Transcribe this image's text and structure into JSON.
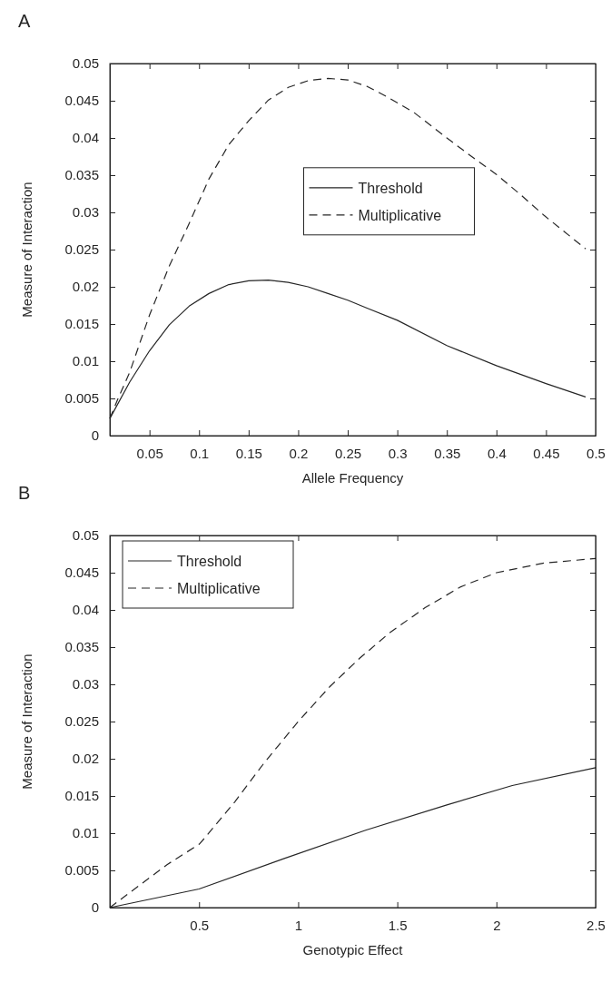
{
  "chart_data": [
    {
      "type": "line",
      "title": "A",
      "xlabel": "Allele Frequency",
      "ylabel": "Measure of Interaction",
      "xlim": [
        0.01,
        0.5
      ],
      "ylim": [
        0,
        0.05
      ],
      "xticks": [
        0.05,
        0.1,
        0.15,
        0.2,
        0.25,
        0.3,
        0.35,
        0.4,
        0.45,
        0.5
      ],
      "yticks": [
        0,
        0.005,
        0.01,
        0.015,
        0.02,
        0.025,
        0.03,
        0.035,
        0.04,
        0.045,
        0.05
      ],
      "legend": "center",
      "grid": false,
      "marker": "none",
      "series": [
        {
          "name": "Threshold",
          "color": "#262626",
          "line_style": "solid",
          "x": [
            0.01,
            0.03,
            0.05,
            0.07,
            0.09,
            0.11,
            0.13,
            0.15,
            0.17,
            0.19,
            0.21,
            0.23,
            0.25,
            0.27,
            0.3,
            0.35,
            0.4,
            0.45,
            0.49
          ],
          "values": [
            0.0023,
            0.0072,
            0.0114,
            0.0149,
            0.0174,
            0.0191,
            0.0203,
            0.0208,
            0.0209,
            0.0206,
            0.02,
            0.0191,
            0.0182,
            0.0171,
            0.0155,
            0.0121,
            0.0094,
            0.007,
            0.0052
          ]
        },
        {
          "name": "Multiplicative",
          "color": "#262626",
          "line_style": "dashed",
          "x": [
            0.01,
            0.018,
            0.03,
            0.05,
            0.07,
            0.09,
            0.11,
            0.13,
            0.15,
            0.17,
            0.19,
            0.21,
            0.23,
            0.25,
            0.27,
            0.29,
            0.317,
            0.35,
            0.376,
            0.4,
            0.425,
            0.448,
            0.49
          ],
          "values": [
            0.0023,
            0.0049,
            0.0085,
            0.0162,
            0.0228,
            0.0285,
            0.0345,
            0.0391,
            0.0423,
            0.0451,
            0.0468,
            0.0477,
            0.048,
            0.0478,
            0.0469,
            0.0455,
            0.0434,
            0.04,
            0.0374,
            0.0351,
            0.0323,
            0.0296,
            0.0251
          ]
        }
      ]
    },
    {
      "type": "line",
      "title": "B",
      "xlabel": "Genotypic Effect",
      "ylabel": "Measure of Interaction",
      "xlim": [
        0.05,
        2.5
      ],
      "ylim": [
        0,
        0.05
      ],
      "xticks": [
        0.5,
        1,
        1.5,
        2,
        2.5
      ],
      "yticks": [
        0,
        0.005,
        0.01,
        0.015,
        0.02,
        0.025,
        0.03,
        0.035,
        0.04,
        0.045,
        0.05
      ],
      "legend": "top left",
      "grid": false,
      "marker": "none",
      "series": [
        {
          "name": "Threshold",
          "color": "#262626",
          "line_style": "solid",
          "x": [
            0.05,
            0.5,
            0.93,
            1.34,
            1.75,
            2.08,
            2.5
          ],
          "values": [
            0,
            0.0025,
            0.0066,
            0.0104,
            0.0138,
            0.0164,
            0.0188
          ]
        },
        {
          "name": "Multiplicative",
          "color": "#262626",
          "line_style": "dashed",
          "x": [
            0.05,
            0.2,
            0.34,
            0.5,
            0.53,
            0.68,
            0.83,
            1,
            1.16,
            1.31,
            1.46,
            1.64,
            1.82,
            2,
            2.24,
            2.5
          ],
          "values": [
            0,
            0.003,
            0.0058,
            0.0085,
            0.0094,
            0.0142,
            0.0195,
            0.025,
            0.0297,
            0.0335,
            0.0369,
            0.0403,
            0.0431,
            0.045,
            0.0463,
            0.0469
          ]
        }
      ]
    }
  ]
}
